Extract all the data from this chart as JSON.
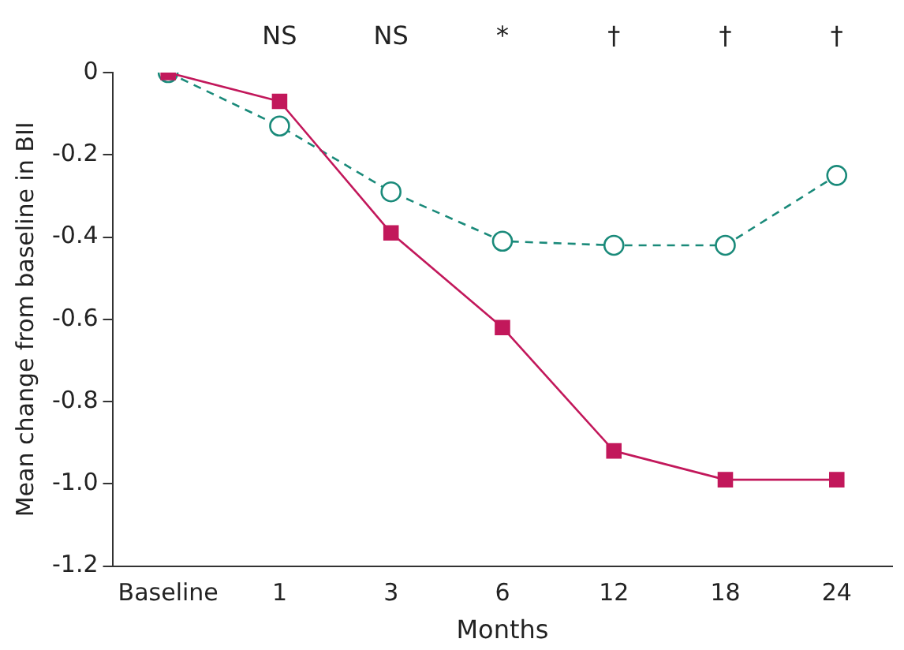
{
  "chart_data": {
    "type": "line",
    "xlabel": "Months",
    "ylabel": "Mean change from baseline in BII",
    "categories": [
      "Baseline",
      "1",
      "3",
      "6",
      "12",
      "18",
      "24"
    ],
    "series": [
      {
        "color": "#c2185b",
        "values": [
          0,
          -0.07,
          -0.39,
          -0.62,
          -0.92,
          -0.99,
          -0.99
        ],
        "marker": "square",
        "line_style": "solid"
      },
      {
        "color": "#1a8a7a",
        "values": [
          0,
          -0.13,
          -0.29,
          -0.41,
          -0.42,
          -0.42,
          -0.25
        ],
        "marker": "circle",
        "line_style": "dashed"
      }
    ],
    "ylim": [
      -1.2,
      0
    ],
    "yticks": [
      0,
      -0.2,
      -0.4,
      -0.6,
      -0.8,
      {
        "value": -1,
        "label": "-1.0"
      },
      -1.2
    ],
    "grid": false,
    "legend": false,
    "annotations": [
      "NS",
      "NS",
      "*",
      "†",
      "†",
      "†"
    ]
  }
}
